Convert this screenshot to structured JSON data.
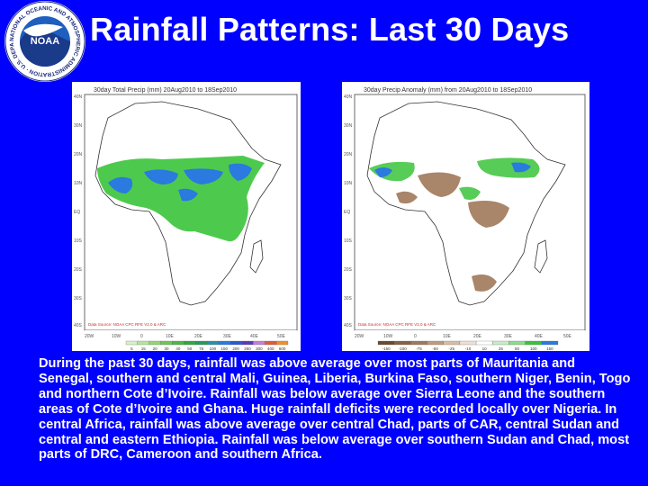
{
  "slide": {
    "title": "Rainfall Patterns: Last 30 Days",
    "logo": {
      "center_text": "NOAA",
      "ring_text": "NATIONAL OCEANIC AND ATMOSPHERIC ADMINISTRATION · U.S. DEPARTMENT OF COMMERCE"
    },
    "body": "During the past 30 days, rainfall was above average over most parts of Mauritania and Senegal, southern and central Mali, Guinea, Liberia, Burkina Faso, southern Niger, Benin, Togo and northern Cote d’Ivoire. Rainfall was below average over Sierra Leone and the southern areas of Cote d’Ivoire and Ghana. Huge rainfall deficits were recorded locally over Nigeria. In central Africa, rainfall was above average over central Chad, parts of CAR, central Sudan and central and eastern Ethiopia. Rainfall was below average over southern Sudan and Chad, most parts of DRC, Cameroon and southern Africa."
  },
  "colors": {
    "background": "#0000ff",
    "text": "#ffffff",
    "green": "#3ac43a",
    "blue": "#2a7ae0",
    "brown": "#a0785a",
    "land": "#ffffff"
  },
  "maps": [
    {
      "header": "30day Total Precip (mm) 20Aug2010 to 18Sep2010",
      "source": "Data Source: NOAA CPC RFE V2.0 & ARC",
      "lat_labels": [
        "40N",
        "30N",
        "20N",
        "10N",
        "EQ",
        "10S",
        "20S",
        "30S",
        "40S"
      ],
      "lon_labels": [
        "20W",
        "10W",
        "0",
        "10E",
        "20E",
        "30E",
        "40E",
        "50E"
      ],
      "legend": [
        "5",
        "15",
        "20",
        "30",
        "40",
        "50",
        "75",
        "100",
        "150",
        "200",
        "250",
        "300",
        "400",
        "600"
      ],
      "legend_colors": [
        "#d8f0c8",
        "#b4e69c",
        "#8ed872",
        "#6cc855",
        "#4cb846",
        "#33a83c",
        "#2a9a5a",
        "#2a90a8",
        "#2a7ae0",
        "#2a5ad0",
        "#5a3ab8",
        "#c080d8",
        "#e05a3a",
        "#f0902a"
      ]
    },
    {
      "header": "30day Precip Anomaly (mm) from 20Aug2010 to 18Sep2010",
      "source": "Data Source: NOAA CPC RFE V2.0 & ARC",
      "lat_labels": [
        "40N",
        "30N",
        "20N",
        "10N",
        "EQ",
        "10S",
        "20S",
        "30S",
        "40S"
      ],
      "lon_labels": [
        "20W",
        "10W",
        "0",
        "10E",
        "20E",
        "30E",
        "40E",
        "50E"
      ],
      "legend": [
        "-150",
        "-100",
        "-75",
        "-50",
        "-25",
        "-10",
        "10",
        "25",
        "50",
        "100",
        "150"
      ],
      "legend_colors": [
        "#6a4a2a",
        "#8a6040",
        "#a0785a",
        "#c09a7c",
        "#d8bca4",
        "#ece0d4",
        "#ffffff",
        "#c8ecc8",
        "#8edc8e",
        "#3ac43a",
        "#2a7ae0"
      ]
    }
  ]
}
